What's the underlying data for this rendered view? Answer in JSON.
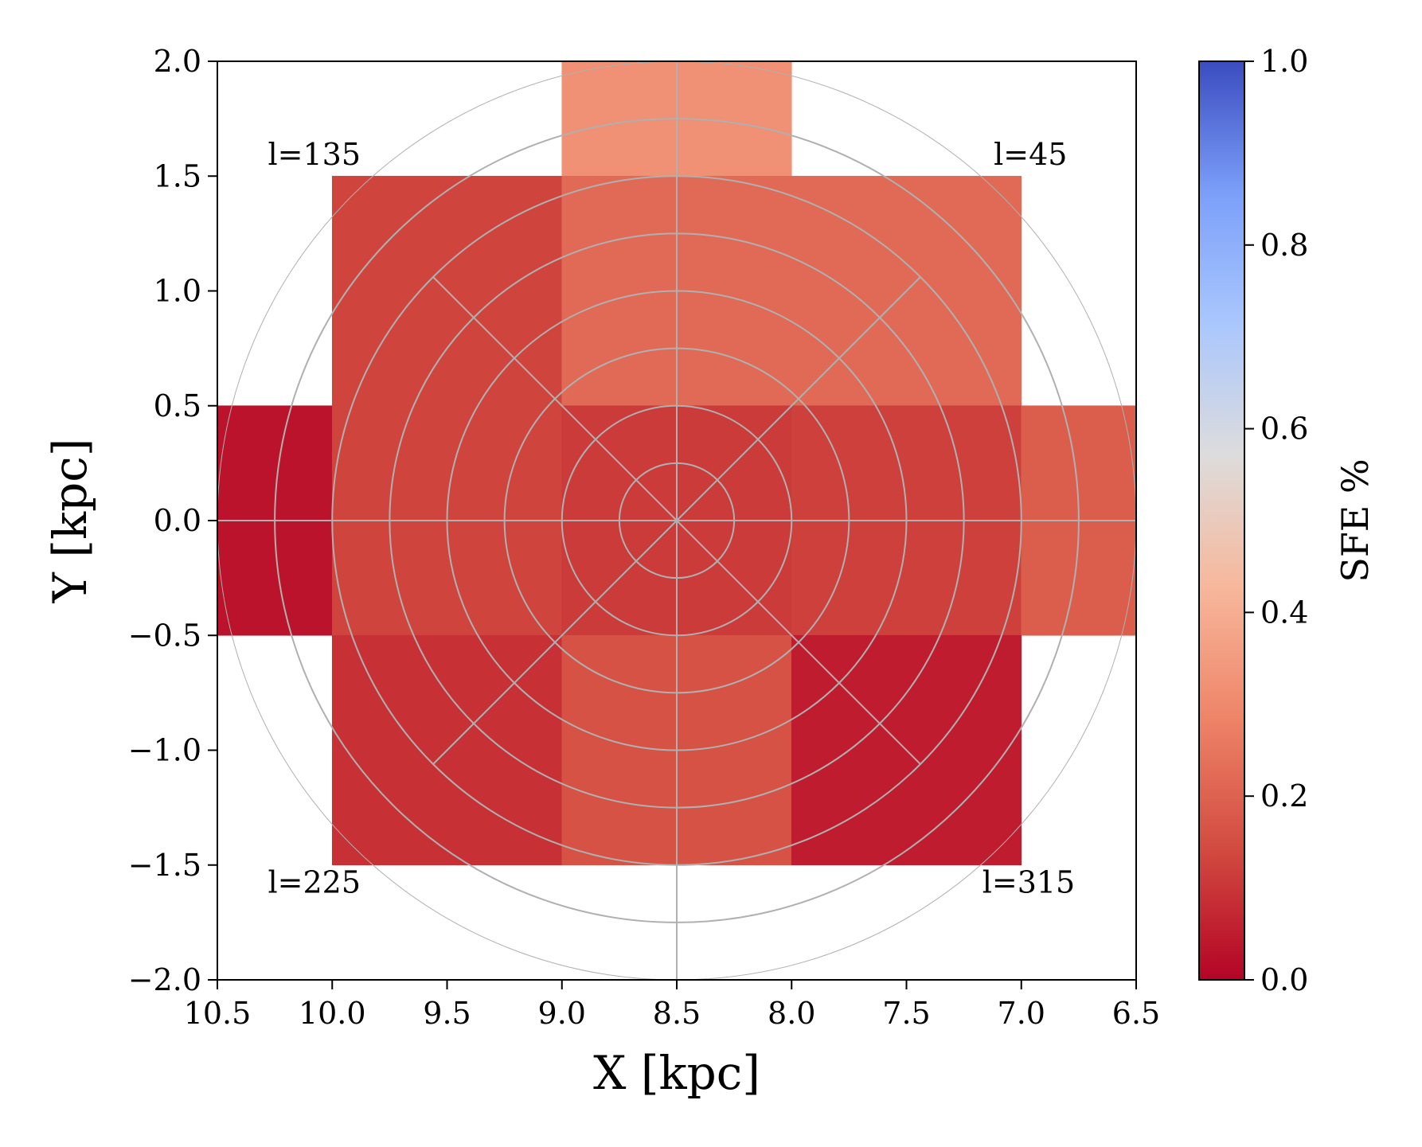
{
  "chart_data": {
    "type": "heatmap",
    "xlabel": "X [kpc]",
    "ylabel": "Y [kpc]",
    "xlim": [
      10.5,
      6.5
    ],
    "ylim": [
      -2.0,
      2.0
    ],
    "x_ticks": [
      10.5,
      10.0,
      9.5,
      9.0,
      8.5,
      8.0,
      7.5,
      7.0,
      6.5
    ],
    "x_tick_labels": [
      "10.5",
      "10.0",
      "9.5",
      "9.0",
      "8.5",
      "8.0",
      "7.5",
      "7.0",
      "6.5"
    ],
    "y_ticks": [
      2.0,
      1.5,
      1.0,
      0.5,
      0.0,
      -0.5,
      -1.0,
      -1.5,
      -2.0
    ],
    "y_tick_labels": [
      "2.0",
      "1.5",
      "1.0",
      "0.5",
      "0.0",
      "−0.5",
      "−1.0",
      "−1.5",
      "−2.0"
    ],
    "colorbar": {
      "label": "SFE %",
      "colormap": "coolwarm_r",
      "range": [
        0.0,
        1.0
      ],
      "ticks": [
        0.0,
        0.2,
        0.4,
        0.6,
        0.8,
        1.0
      ],
      "tick_labels": [
        "0.0",
        "0.2",
        "0.4",
        "0.6",
        "0.8",
        "1.0"
      ],
      "stops": [
        "#b40426",
        "#d24b40",
        "#ee8468",
        "#f7b89c",
        "#dddcdc",
        "#aac7fd",
        "#7b9ff9",
        "#3b4cc0"
      ]
    },
    "cells": [
      {
        "x0": 10.5,
        "x1": 10.0,
        "y0": -0.5,
        "y1": 0.5,
        "value": 0.03
      },
      {
        "x0": 10.0,
        "x1": 9.0,
        "y0": 0.5,
        "y1": 1.5,
        "value": 0.13
      },
      {
        "x0": 9.0,
        "x1": 8.0,
        "y0": 1.5,
        "y1": 2.0,
        "value": 0.32
      },
      {
        "x0": 9.0,
        "x1": 8.0,
        "y0": 0.5,
        "y1": 1.5,
        "value": 0.22
      },
      {
        "x0": 8.0,
        "x1": 7.0,
        "y0": 0.5,
        "y1": 1.5,
        "value": 0.22
      },
      {
        "x0": 10.0,
        "x1": 9.0,
        "y0": -0.5,
        "y1": 0.5,
        "value": 0.13
      },
      {
        "x0": 9.0,
        "x1": 8.0,
        "y0": -0.5,
        "y1": 0.5,
        "value": 0.11
      },
      {
        "x0": 8.0,
        "x1": 7.0,
        "y0": -0.5,
        "y1": 0.5,
        "value": 0.12
      },
      {
        "x0": 7.0,
        "x1": 6.5,
        "y0": -0.5,
        "y1": 0.5,
        "value": 0.19
      },
      {
        "x0": 10.0,
        "x1": 9.0,
        "y0": -1.5,
        "y1": -0.5,
        "value": 0.09
      },
      {
        "x0": 9.0,
        "x1": 8.0,
        "y0": -1.5,
        "y1": -0.5,
        "value": 0.16
      },
      {
        "x0": 8.0,
        "x1": 7.0,
        "y0": -1.5,
        "y1": -0.5,
        "value": 0.05
      }
    ],
    "overlay": {
      "center": [
        8.5,
        0.0
      ],
      "circle_radii": [
        0.25,
        0.5,
        0.75,
        1.0,
        1.25,
        1.5,
        1.75,
        2.0
      ],
      "spoke_angles_deg": [
        0,
        45,
        90,
        135,
        180,
        225,
        270,
        315
      ]
    },
    "annotations": [
      {
        "text": "l=135",
        "x": 10.28,
        "y": 1.55
      },
      {
        "text": "l=45",
        "x": 7.12,
        "y": 1.55
      },
      {
        "text": "l=225",
        "x": 10.28,
        "y": -1.62
      },
      {
        "text": "l=315",
        "x": 7.17,
        "y": -1.62
      }
    ]
  }
}
